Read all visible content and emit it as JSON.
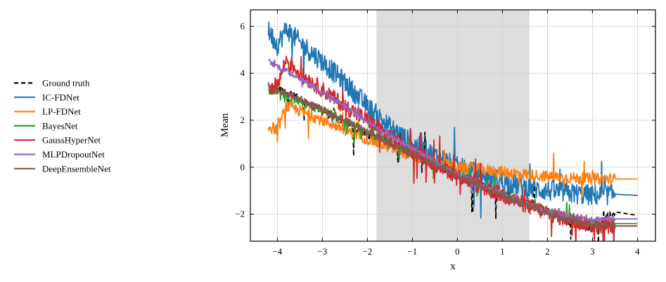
{
  "chart_data": {
    "type": "line",
    "xlabel": "x",
    "ylabel": "Mean",
    "xlim": [
      -4.6,
      4.4
    ],
    "ylim": [
      -3.15,
      6.7
    ],
    "xticks": [
      -4,
      -3,
      -2,
      -1,
      0,
      1,
      2,
      3,
      4
    ],
    "yticks": [
      -2,
      0,
      2,
      4,
      6
    ],
    "xtick_labels": [
      "−4",
      "−3",
      "−2",
      "−1",
      "0",
      "1",
      "2",
      "3",
      "4"
    ],
    "ytick_labels": [
      "−2",
      "0",
      "2",
      "4",
      "6"
    ],
    "grid": true,
    "legend_position": "left-outside",
    "shaded_region": {
      "x": [
        -1.8,
        1.6
      ],
      "color": "#dddddd"
    },
    "series": [
      {
        "name": "Ground truth",
        "color": "#000000",
        "style": "dashed",
        "x": [
          -4.1,
          -3.8,
          -3.5,
          -3.0,
          -2.5,
          -2.0,
          -1.5,
          -1.0,
          -0.5,
          0.0,
          0.5,
          1.0,
          1.5,
          2.0,
          2.5,
          3.0,
          3.5,
          4.0
        ],
        "y": [
          3.4,
          3.2,
          2.9,
          2.4,
          1.9,
          1.4,
          0.95,
          0.5,
          0.1,
          -0.35,
          -0.75,
          -1.15,
          -1.5,
          -1.9,
          -2.3,
          -2.6,
          -1.9,
          -2.05
        ]
      },
      {
        "name": "IC-FDNet",
        "color": "#1f77b4",
        "style": "solid",
        "x": [
          -4.2,
          -4.0,
          -3.8,
          -3.5,
          -3.0,
          -2.5,
          -2.0,
          -1.5,
          -1.0,
          -0.5,
          0.0,
          0.5,
          1.0,
          1.5,
          2.0,
          2.5,
          3.0,
          3.5,
          4.0
        ],
        "y": [
          5.8,
          5.2,
          5.9,
          5.3,
          4.5,
          3.6,
          2.6,
          1.7,
          1.0,
          0.5,
          0.0,
          -0.3,
          -0.6,
          -0.85,
          -1.0,
          -1.1,
          -1.2,
          -1.15,
          -1.2
        ]
      },
      {
        "name": "LP-FDNet",
        "color": "#ff7f0e",
        "style": "solid",
        "x": [
          -4.2,
          -4.0,
          -3.8,
          -3.5,
          -3.0,
          -2.5,
          -2.0,
          -1.5,
          -1.0,
          -0.5,
          0.0,
          0.5,
          1.0,
          1.5,
          2.0,
          2.5,
          3.0,
          3.5,
          4.0
        ],
        "y": [
          1.75,
          1.6,
          2.6,
          2.4,
          2.0,
          1.6,
          1.2,
          0.85,
          0.5,
          0.2,
          0.0,
          -0.1,
          -0.2,
          -0.3,
          -0.4,
          -0.45,
          -0.5,
          -0.5,
          -0.5
        ]
      },
      {
        "name": "BayesNet",
        "color": "#2ca02c",
        "style": "solid",
        "x": [
          -4.2,
          -4.0,
          -3.5,
          -3.0,
          -2.5,
          -2.0,
          -1.5,
          -1.0,
          -0.5,
          0.0,
          0.5,
          1.0,
          1.5,
          2.0,
          2.5,
          3.0,
          3.5,
          4.0
        ],
        "y": [
          3.3,
          3.2,
          2.8,
          2.4,
          2.0,
          1.5,
          1.05,
          0.6,
          0.15,
          -0.3,
          -0.7,
          -1.1,
          -1.5,
          -1.85,
          -2.15,
          -2.4,
          -2.4,
          -2.4
        ]
      },
      {
        "name": "GaussHyperNet",
        "color": "#d62728",
        "style": "solid",
        "x": [
          -4.2,
          -4.0,
          -3.8,
          -3.5,
          -3.0,
          -2.5,
          -2.0,
          -1.5,
          -1.0,
          -0.5,
          0.0,
          0.5,
          1.0,
          1.5,
          2.0,
          2.5,
          3.0,
          3.5,
          4.0
        ],
        "y": [
          3.4,
          3.5,
          4.6,
          4.0,
          3.3,
          2.6,
          2.0,
          1.3,
          0.7,
          0.15,
          -0.35,
          -0.8,
          -1.2,
          -1.6,
          -1.95,
          -2.25,
          -2.45,
          -2.5,
          -2.5
        ]
      },
      {
        "name": "MLPDropoutNet",
        "color": "#9467bd",
        "style": "solid",
        "x": [
          -4.2,
          -4.0,
          -3.5,
          -3.0,
          -2.5,
          -2.0,
          -1.5,
          -1.0,
          -0.5,
          0.0,
          0.5,
          1.0,
          1.5,
          2.0,
          2.5,
          3.0,
          3.5,
          4.0
        ],
        "y": [
          4.5,
          4.3,
          3.8,
          3.2,
          2.6,
          1.95,
          1.35,
          0.8,
          0.25,
          -0.3,
          -0.75,
          -1.15,
          -1.55,
          -1.9,
          -2.1,
          -2.2,
          -2.2,
          -2.2
        ]
      },
      {
        "name": "DeepEnsembleNet",
        "color": "#8c564b",
        "style": "solid",
        "x": [
          -4.2,
          -4.0,
          -3.5,
          -3.0,
          -2.5,
          -2.0,
          -1.5,
          -1.0,
          -0.5,
          0.0,
          0.5,
          1.0,
          1.5,
          2.0,
          2.5,
          3.0,
          3.5,
          4.0
        ],
        "y": [
          3.5,
          3.3,
          2.9,
          2.45,
          2.0,
          1.5,
          1.0,
          0.55,
          0.1,
          -0.35,
          -0.8,
          -1.2,
          -1.6,
          -1.95,
          -2.25,
          -2.5,
          -2.5,
          -2.5
        ]
      }
    ]
  }
}
